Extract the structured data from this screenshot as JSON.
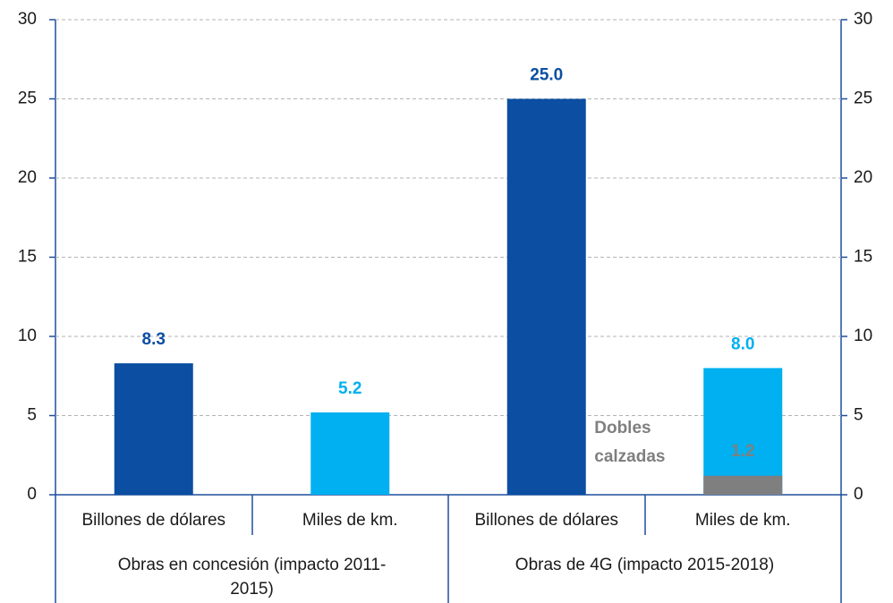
{
  "chart_data": {
    "type": "bar",
    "categories": [
      "Billones de dólares",
      "Miles de km.",
      "Billones de dólares",
      "Miles de km."
    ],
    "groups": [
      "Obras en concesión (impacto 2011-2015)",
      "Obras de 4G (impacto 2015-2018)"
    ],
    "series": [
      {
        "color": "#0b4ea2",
        "values": [
          8.3,
          null,
          25.0,
          null
        ],
        "value_labels": [
          "8.3",
          null,
          "25.0",
          null
        ]
      },
      {
        "color": "#00b0f0",
        "axis": "y2",
        "values": [
          null,
          5.2,
          null,
          8.0
        ],
        "value_labels": [
          null,
          "5.2",
          null,
          "8.0"
        ]
      },
      {
        "name": "Dobles calzadas",
        "color": "#7f7f7f",
        "axis": "y2",
        "overlay": true,
        "values": [
          null,
          null,
          null,
          1.2
        ],
        "value_labels": [
          null,
          null,
          null,
          "1.2"
        ]
      }
    ],
    "ylim": [
      0,
      30
    ],
    "yticks": [
      0,
      5,
      10,
      15,
      20,
      25,
      30
    ],
    "y2lim": [
      0,
      30
    ],
    "y2ticks": [
      0,
      5,
      10,
      15,
      20,
      25,
      30
    ],
    "grid": true
  }
}
